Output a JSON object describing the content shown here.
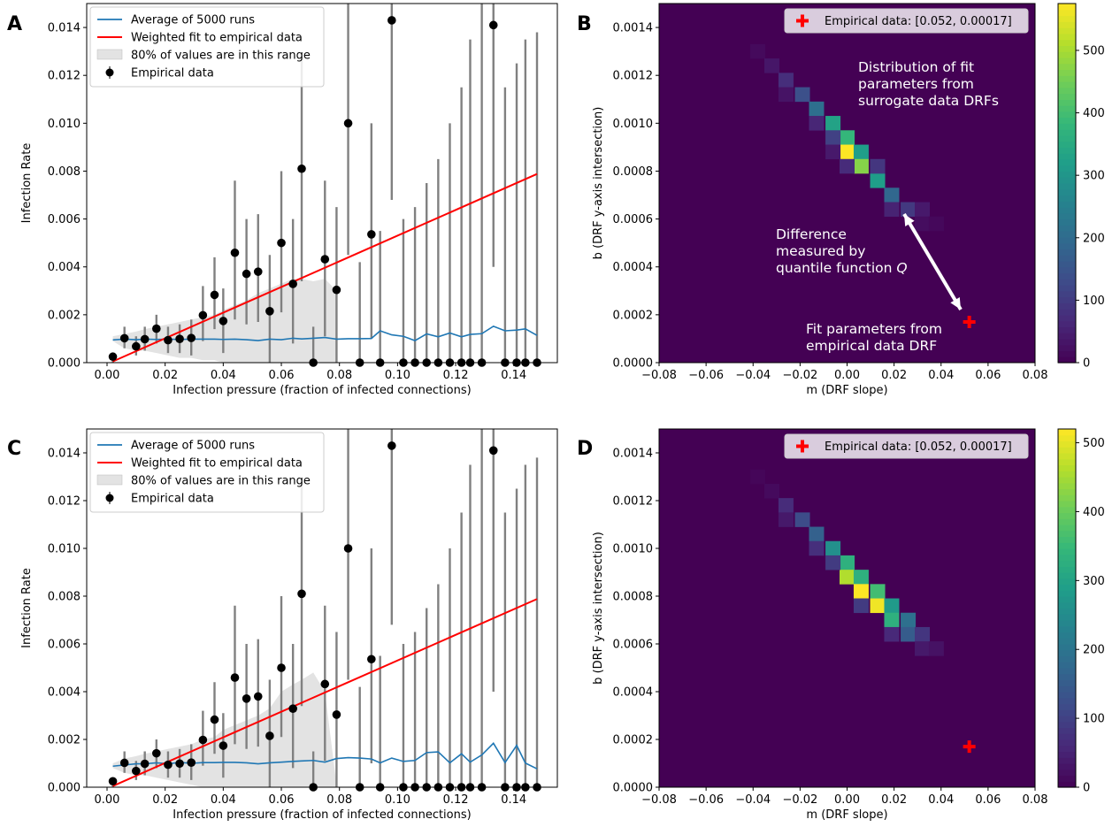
{
  "chart_data": [
    {
      "panel": "A",
      "type": "scatter",
      "xlabel": "Infection pressure (fraction of infected connections)",
      "ylabel": "Infection Rate",
      "xlim": [
        -0.007,
        0.155
      ],
      "ylim": [
        0,
        0.015
      ],
      "x_ticks": [
        "0.00",
        "0.02",
        "0.04",
        "0.06",
        "0.08",
        "0.10",
        "0.12",
        "0.14"
      ],
      "y_ticks": [
        "0.000",
        "0.002",
        "0.004",
        "0.006",
        "0.008",
        "0.010",
        "0.012",
        "0.014"
      ],
      "legend": {
        "placement": "upper-left",
        "entries": [
          "Average of 5000 runs",
          "Weighted fit to empirical data",
          "80% of values are in this range",
          "Empirical data"
        ]
      },
      "colors": {
        "average": "#1f77b4",
        "fit": "#ff0000",
        "band": "#e3e3e3",
        "points": "#000000",
        "errorbars": "#808080"
      },
      "empirical": {
        "x": [
          0.002,
          0.006,
          0.01,
          0.013,
          0.017,
          0.021,
          0.025,
          0.029,
          0.033,
          0.037,
          0.04,
          0.044,
          0.048,
          0.052,
          0.056,
          0.06,
          0.064,
          0.067,
          0.071,
          0.075,
          0.079,
          0.083,
          0.087,
          0.091,
          0.094,
          0.098,
          0.102,
          0.106,
          0.11,
          0.114,
          0.118,
          0.122,
          0.125,
          0.129,
          0.133,
          0.137,
          0.141,
          0.144,
          0.148
        ],
        "y": [
          0.00025,
          0.00102,
          0.00068,
          0.00098,
          0.00142,
          0.00094,
          0.00099,
          0.00103,
          0.00198,
          0.00283,
          0.00174,
          0.00459,
          0.00371,
          0.0038,
          0.00215,
          0.005,
          0.00329,
          0.0081,
          0.0,
          0.00432,
          0.00304,
          0.01,
          0.0,
          0.00536,
          0.0,
          0.0143,
          0.0,
          0.0,
          0.0,
          0.0,
          0.0,
          0.0,
          0.0,
          0.0,
          0.0141,
          0.0,
          0.0,
          0.0,
          0.0
        ],
        "err_low": [
          0.0,
          0.0006,
          0.0003,
          0.0005,
          0.0008,
          0.0004,
          0.0004,
          0.0003,
          0.0009,
          0.0014,
          0.0004,
          0.0018,
          0.0016,
          0.0017,
          0.0,
          0.0021,
          0.0008,
          0.0034,
          0.0,
          0.0011,
          0.0,
          0.0045,
          0.0,
          0.001,
          0.0,
          0.0068,
          0.0,
          0.0,
          0.0,
          0.0,
          0.0,
          0.0,
          0.0,
          0.0,
          0.004,
          0.0,
          0.0,
          0.0,
          0.0
        ],
        "err_high": [
          0.0004,
          0.0015,
          0.0011,
          0.0015,
          0.002,
          0.0015,
          0.0016,
          0.0018,
          0.0032,
          0.0044,
          0.0031,
          0.0076,
          0.006,
          0.0062,
          0.0045,
          0.008,
          0.006,
          0.0128,
          0.0015,
          0.0076,
          0.0065,
          0.015,
          0.0042,
          0.01,
          0.0055,
          0.015,
          0.006,
          0.0065,
          0.0075,
          0.0085,
          0.01,
          0.0115,
          0.0135,
          0.015,
          0.015,
          0.0115,
          0.0125,
          0.0135,
          0.0138
        ]
      },
      "fit_line": {
        "x": [
          0.002,
          0.148
        ],
        "y": [
          5e-05,
          0.00788
        ]
      },
      "average": {
        "x": [
          0.002,
          0.006,
          0.01,
          0.013,
          0.017,
          0.021,
          0.025,
          0.029,
          0.033,
          0.037,
          0.04,
          0.044,
          0.048,
          0.052,
          0.056,
          0.06,
          0.064,
          0.067,
          0.071,
          0.075,
          0.079,
          0.083,
          0.087,
          0.091,
          0.094,
          0.098,
          0.102,
          0.106,
          0.11,
          0.114,
          0.118,
          0.122,
          0.125,
          0.129,
          0.133,
          0.137,
          0.141,
          0.144,
          0.148
        ],
        "y": [
          0.00095,
          0.00098,
          0.00096,
          0.00098,
          0.00097,
          0.00098,
          0.00097,
          0.00098,
          0.00098,
          0.00098,
          0.00097,
          0.00098,
          0.00096,
          0.00092,
          0.00098,
          0.00096,
          0.00102,
          0.00099,
          0.00102,
          0.00105,
          0.00098,
          0.001,
          0.001,
          0.00101,
          0.00133,
          0.00116,
          0.0011,
          0.00092,
          0.0012,
          0.00108,
          0.00124,
          0.00108,
          0.00118,
          0.00121,
          0.00152,
          0.00133,
          0.00136,
          0.00141,
          0.00114
        ]
      },
      "band": {
        "x": [
          0.002,
          0.006,
          0.01,
          0.013,
          0.017,
          0.021,
          0.025,
          0.029,
          0.033,
          0.037,
          0.04,
          0.044,
          0.048,
          0.052,
          0.056,
          0.06,
          0.064,
          0.067,
          0.071,
          0.075,
          0.079
        ],
        "low": [
          0.0009,
          0.0006,
          0.0005,
          0.0005,
          0.0004,
          0.0003,
          0.0002,
          0.0002,
          0.0001,
          0.0001,
          0.0,
          0.0,
          0.0,
          0.0,
          0.0,
          0.0,
          0.0,
          0.0,
          0.0,
          0.0,
          0.0
        ],
        "high": [
          0.0011,
          0.0012,
          0.0013,
          0.0014,
          0.0015,
          0.0016,
          0.0017,
          0.0018,
          0.0019,
          0.002,
          0.0022,
          0.0024,
          0.0026,
          0.0029,
          0.0031,
          0.0033,
          0.0035,
          0.0035,
          0.0034,
          0.0035,
          0.003
        ]
      }
    },
    {
      "panel": "B",
      "type": "heatmap",
      "xlabel": "m (DRF slope)",
      "ylabel": "b (DRF y-axis intersection)",
      "xlim": [
        -0.08,
        0.08
      ],
      "ylim": [
        0,
        0.0015
      ],
      "x_ticks": [
        "−0.08",
        "−0.06",
        "−0.04",
        "−0.02",
        "0.00",
        "0.02",
        "0.04",
        "0.06",
        "0.08"
      ],
      "y_ticks": [
        "0.0000",
        "0.0002",
        "0.0004",
        "0.0006",
        "0.0008",
        "0.0010",
        "0.0012",
        "0.0014"
      ],
      "colorbar_ticks": [
        "0",
        "100",
        "200",
        "300",
        "400",
        "500"
      ],
      "colorbar_max": 575,
      "bin": {
        "m_width": 0.0064,
        "b_height": 6.12e-05
      },
      "cells": [
        {
          "m": -0.038,
          "b": 0.0013,
          "v": 14
        },
        {
          "m": -0.032,
          "b": 0.00124,
          "v": 35
        },
        {
          "m": -0.026,
          "b": 0.00118,
          "v": 75
        },
        {
          "m": -0.019,
          "b": 0.00112,
          "v": 140
        },
        {
          "m": -0.013,
          "b": 0.00106,
          "v": 210
        },
        {
          "m": -0.006,
          "b": 0.001,
          "v": 330
        },
        {
          "m": 0.0,
          "b": 0.00094,
          "v": 380
        },
        {
          "m": 0.0,
          "b": 0.00088,
          "v": 575
        },
        {
          "m": 0.006,
          "b": 0.00088,
          "v": 320
        },
        {
          "m": 0.006,
          "b": 0.00082,
          "v": 470
        },
        {
          "m": 0.013,
          "b": 0.00076,
          "v": 320
        },
        {
          "m": 0.019,
          "b": 0.0007,
          "v": 190
        },
        {
          "m": 0.026,
          "b": 0.00064,
          "v": 95
        },
        {
          "m": -0.013,
          "b": 0.001,
          "v": 60
        },
        {
          "m": -0.006,
          "b": 0.00094,
          "v": 110
        },
        {
          "m": -0.026,
          "b": 0.00112,
          "v": 30
        },
        {
          "m": 0.013,
          "b": 0.00082,
          "v": 90
        },
        {
          "m": 0.019,
          "b": 0.00064,
          "v": 55
        },
        {
          "m": 0.032,
          "b": 0.00064,
          "v": 40
        },
        {
          "m": 0.032,
          "b": 0.00058,
          "v": 20
        },
        {
          "m": 0.038,
          "b": 0.00058,
          "v": 12
        },
        {
          "m": -0.006,
          "b": 0.00088,
          "v": 40
        },
        {
          "m": 0.0,
          "b": 0.00082,
          "v": 70
        }
      ],
      "empirical_point": {
        "m": 0.052,
        "b": 0.00017,
        "color": "#ff0000"
      },
      "legend_text": "Empirical data: [0.052, 0.00017]",
      "annotations": {
        "distribution": [
          "Distribution of fit",
          "parameters from",
          "surrogate data DRFs"
        ],
        "difference": [
          "Difference",
          "measured by",
          "quantile function "
        ],
        "difference_symbol": "Q",
        "fit": [
          "Fit parameters from",
          "empirical data DRF"
        ]
      }
    },
    {
      "panel": "C",
      "type": "scatter",
      "xlabel": "Infection pressure (fraction of infected connections)",
      "ylabel": "Infection Rate",
      "xlim": [
        -0.007,
        0.155
      ],
      "ylim": [
        0,
        0.015
      ],
      "x_ticks": [
        "0.00",
        "0.02",
        "0.04",
        "0.06",
        "0.08",
        "0.10",
        "0.12",
        "0.14"
      ],
      "y_ticks": [
        "0.000",
        "0.002",
        "0.004",
        "0.006",
        "0.008",
        "0.010",
        "0.012",
        "0.014"
      ],
      "legend": {
        "placement": "upper-left",
        "entries": [
          "Average of 5000 runs",
          "Weighted fit to empirical data",
          "80% of values are in this range",
          "Empirical data"
        ]
      },
      "colors": {
        "average": "#1f77b4",
        "fit": "#ff0000",
        "band": "#e3e3e3",
        "points": "#000000",
        "errorbars": "#808080"
      },
      "empirical": {
        "x": [
          0.002,
          0.006,
          0.01,
          0.013,
          0.017,
          0.021,
          0.025,
          0.029,
          0.033,
          0.037,
          0.04,
          0.044,
          0.048,
          0.052,
          0.056,
          0.06,
          0.064,
          0.067,
          0.071,
          0.075,
          0.079,
          0.083,
          0.087,
          0.091,
          0.094,
          0.098,
          0.102,
          0.106,
          0.11,
          0.114,
          0.118,
          0.122,
          0.125,
          0.129,
          0.133,
          0.137,
          0.141,
          0.144,
          0.148
        ],
        "y": [
          0.00025,
          0.00102,
          0.00068,
          0.00098,
          0.00142,
          0.00094,
          0.00099,
          0.00103,
          0.00198,
          0.00283,
          0.00174,
          0.00459,
          0.00371,
          0.0038,
          0.00215,
          0.005,
          0.00329,
          0.0081,
          0.0,
          0.00432,
          0.00304,
          0.01,
          0.0,
          0.00536,
          0.0,
          0.0143,
          0.0,
          0.0,
          0.0,
          0.0,
          0.0,
          0.0,
          0.0,
          0.0,
          0.0141,
          0.0,
          0.0,
          0.0,
          0.0
        ],
        "err_low": [
          0.0,
          0.0006,
          0.0003,
          0.0005,
          0.0008,
          0.0004,
          0.0004,
          0.0003,
          0.0009,
          0.0014,
          0.0004,
          0.0018,
          0.0016,
          0.0017,
          0.0,
          0.0021,
          0.0008,
          0.0034,
          0.0,
          0.0011,
          0.0,
          0.0045,
          0.0,
          0.001,
          0.0,
          0.0068,
          0.0,
          0.0,
          0.0,
          0.0,
          0.0,
          0.0,
          0.0,
          0.0,
          0.004,
          0.0,
          0.0,
          0.0,
          0.0
        ],
        "err_high": [
          0.0004,
          0.0015,
          0.0011,
          0.0015,
          0.002,
          0.0015,
          0.0016,
          0.0018,
          0.0032,
          0.0044,
          0.0031,
          0.0076,
          0.006,
          0.0062,
          0.0045,
          0.008,
          0.006,
          0.0128,
          0.0015,
          0.0076,
          0.0065,
          0.015,
          0.0042,
          0.01,
          0.0055,
          0.015,
          0.006,
          0.0065,
          0.0075,
          0.0085,
          0.01,
          0.0115,
          0.0135,
          0.015,
          0.015,
          0.0115,
          0.0125,
          0.0135,
          0.0138
        ]
      },
      "fit_line": {
        "x": [
          0.002,
          0.148
        ],
        "y": [
          5e-05,
          0.00788
        ]
      },
      "average": {
        "x": [
          0.002,
          0.006,
          0.01,
          0.013,
          0.017,
          0.021,
          0.025,
          0.029,
          0.033,
          0.037,
          0.04,
          0.044,
          0.048,
          0.052,
          0.056,
          0.06,
          0.064,
          0.067,
          0.071,
          0.075,
          0.079,
          0.083,
          0.087,
          0.091,
          0.094,
          0.098,
          0.102,
          0.106,
          0.11,
          0.114,
          0.118,
          0.122,
          0.125,
          0.129,
          0.133,
          0.137,
          0.141,
          0.144,
          0.148
        ],
        "y": [
          0.00088,
          0.00093,
          0.00098,
          0.00098,
          0.00102,
          0.00098,
          0.00104,
          0.001,
          0.00103,
          0.00103,
          0.00104,
          0.00104,
          0.00102,
          0.00098,
          0.00102,
          0.00105,
          0.00108,
          0.0011,
          0.00112,
          0.00105,
          0.0012,
          0.00124,
          0.00122,
          0.00118,
          0.00102,
          0.00122,
          0.00108,
          0.00112,
          0.00145,
          0.00148,
          0.00102,
          0.0014,
          0.00105,
          0.00135,
          0.00184,
          0.00103,
          0.00175,
          0.00101,
          0.00077
        ]
      },
      "band": {
        "x": [
          0.002,
          0.006,
          0.01,
          0.013,
          0.017,
          0.021,
          0.025,
          0.029,
          0.033,
          0.037,
          0.04,
          0.044,
          0.048,
          0.052,
          0.056,
          0.06,
          0.064,
          0.067,
          0.071,
          0.075,
          0.079
        ],
        "low": [
          0.0008,
          0.0006,
          0.0005,
          0.0005,
          0.0004,
          0.0003,
          0.0002,
          0.0001,
          0.0,
          0.0,
          0.0,
          0.0,
          0.0,
          0.0,
          0.0,
          0.0,
          0.0,
          0.0,
          0.0,
          0.0,
          0.0
        ],
        "high": [
          0.001,
          0.0012,
          0.0013,
          0.0014,
          0.0015,
          0.0016,
          0.0017,
          0.0018,
          0.002,
          0.0021,
          0.0024,
          0.0026,
          0.0028,
          0.003,
          0.0033,
          0.004,
          0.0043,
          0.0045,
          0.0048,
          0.004,
          0.0001
        ]
      }
    },
    {
      "panel": "D",
      "type": "heatmap",
      "xlabel": "m (DRF slope)",
      "ylabel": "b (DRF y-axis intersection)",
      "xlim": [
        -0.08,
        0.08
      ],
      "ylim": [
        0,
        0.0015
      ],
      "x_ticks": [
        "−0.08",
        "−0.06",
        "−0.04",
        "−0.02",
        "0.00",
        "0.02",
        "0.04",
        "0.06",
        "0.08"
      ],
      "y_ticks": [
        "0.0000",
        "0.0002",
        "0.0004",
        "0.0006",
        "0.0008",
        "0.0010",
        "0.0012",
        "0.0014"
      ],
      "colorbar_ticks": [
        "0",
        "100",
        "200",
        "300",
        "400",
        "500"
      ],
      "colorbar_max": 520,
      "bin": {
        "m_width": 0.0064,
        "b_height": 6.12e-05
      },
      "cells": [
        {
          "m": -0.032,
          "b": 0.00124,
          "v": 14
        },
        {
          "m": -0.026,
          "b": 0.00118,
          "v": 65
        },
        {
          "m": -0.019,
          "b": 0.00112,
          "v": 120
        },
        {
          "m": -0.013,
          "b": 0.00106,
          "v": 160
        },
        {
          "m": -0.006,
          "b": 0.001,
          "v": 260
        },
        {
          "m": 0.0,
          "b": 0.00094,
          "v": 330
        },
        {
          "m": 0.0,
          "b": 0.00088,
          "v": 460
        },
        {
          "m": 0.006,
          "b": 0.00088,
          "v": 330
        },
        {
          "m": 0.006,
          "b": 0.00082,
          "v": 520
        },
        {
          "m": 0.013,
          "b": 0.00082,
          "v": 360
        },
        {
          "m": 0.013,
          "b": 0.00076,
          "v": 510
        },
        {
          "m": 0.019,
          "b": 0.00076,
          "v": 280
        },
        {
          "m": 0.019,
          "b": 0.0007,
          "v": 330
        },
        {
          "m": 0.026,
          "b": 0.0007,
          "v": 190
        },
        {
          "m": 0.026,
          "b": 0.00064,
          "v": 150
        },
        {
          "m": 0.032,
          "b": 0.00064,
          "v": 80
        },
        {
          "m": 0.032,
          "b": 0.00058,
          "v": 35
        },
        {
          "m": 0.038,
          "b": 0.00058,
          "v": 25
        },
        {
          "m": -0.013,
          "b": 0.001,
          "v": 70
        },
        {
          "m": -0.006,
          "b": 0.00094,
          "v": 90
        },
        {
          "m": -0.026,
          "b": 0.00112,
          "v": 35
        },
        {
          "m": 0.006,
          "b": 0.00076,
          "v": 90
        },
        {
          "m": 0.019,
          "b": 0.00064,
          "v": 60
        },
        {
          "m": -0.038,
          "b": 0.0013,
          "v": 8
        }
      ],
      "empirical_point": {
        "m": 0.052,
        "b": 0.00017,
        "color": "#ff0000"
      },
      "legend_text": "Empirical data: [0.052, 0.00017]"
    }
  ]
}
